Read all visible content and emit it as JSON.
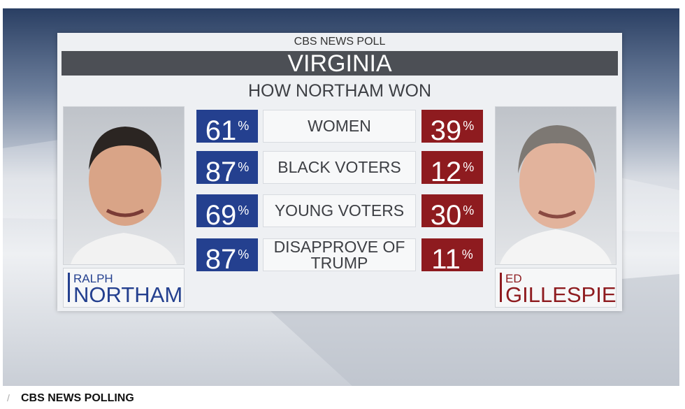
{
  "header": {
    "brand": "CBS NEWS POLL",
    "state": "VIRGINIA",
    "subtitle": "HOW NORTHAM WON"
  },
  "unit": "%",
  "candidates": {
    "left": {
      "first": "RALPH",
      "last": "NORTHAM"
    },
    "right": {
      "first": "ED",
      "last": "GILLESPIE"
    }
  },
  "rows": [
    {
      "label": "WOMEN",
      "northam": 61,
      "gillespie": 39
    },
    {
      "label": "BLACK VOTERS",
      "northam": 87,
      "gillespie": 12
    },
    {
      "label": "YOUNG VOTERS",
      "northam": 69,
      "gillespie": 30
    },
    {
      "label": "DISAPPROVE OF TRUMP",
      "northam": 87,
      "gillespie": 11
    }
  ],
  "caption": "CBS NEWS POLLING"
}
